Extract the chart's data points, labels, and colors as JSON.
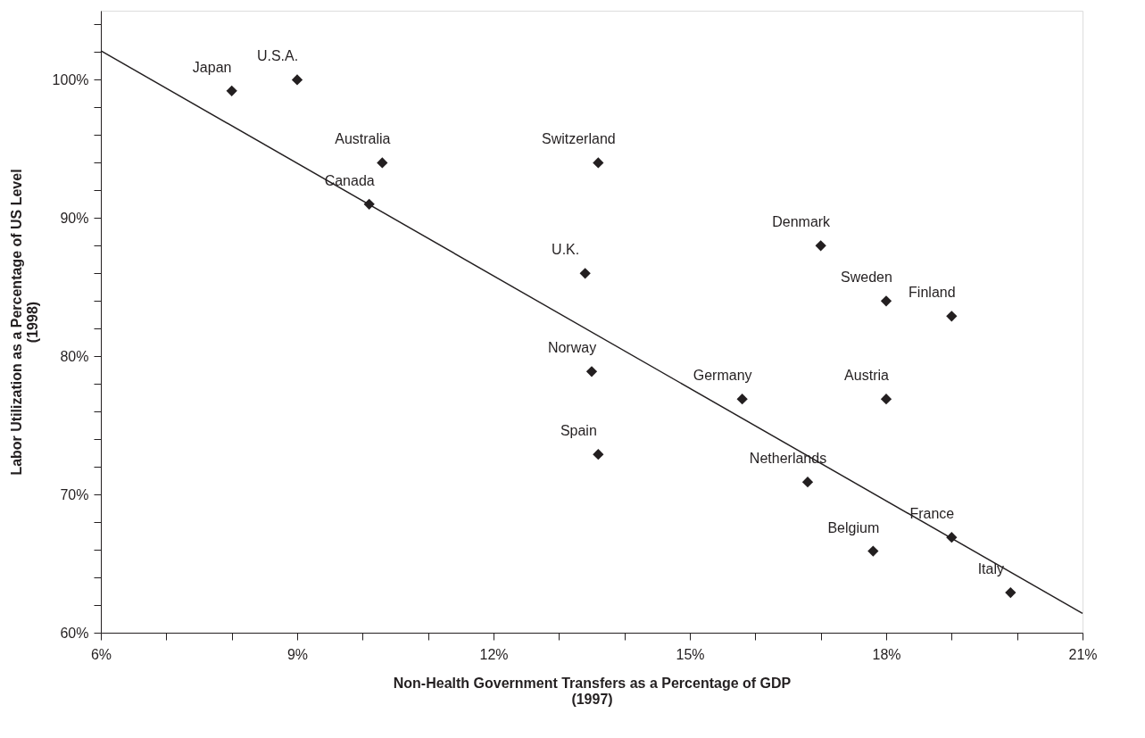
{
  "chart_data": {
    "type": "scatter",
    "xlabel": "Non-Health Government Transfers as a Percentage of GDP\n(1997)",
    "ylabel": "Labor Utilization as a Percentage of US Level\n(1998)",
    "series": [
      {
        "color": "#231f20",
        "marker": "diamond",
        "x": [
          8.0,
          9.0,
          10.3,
          10.1,
          13.6,
          13.4,
          13.5,
          13.6,
          15.8,
          17.0,
          18.0,
          19.0,
          18.0,
          16.8,
          17.8,
          19.0,
          19.9
        ],
        "values": [
          99.2,
          100.0,
          94.0,
          91.0,
          94.0,
          86.0,
          78.9,
          72.9,
          76.9,
          88.0,
          84.0,
          82.9,
          76.9,
          70.9,
          65.9,
          66.9,
          62.9
        ]
      },
      {
        "type": "line",
        "color": "#231f20",
        "line_style": "solid",
        "x": [
          6,
          21
        ],
        "values": [
          102.1,
          61.4
        ]
      }
    ],
    "annotations": [
      {
        "text": "Japan",
        "x": 8.0,
        "y": 99.2
      },
      {
        "text": "U.S.A.",
        "x": 9.0,
        "y": 100.0
      },
      {
        "text": "Australia",
        "x": 10.3,
        "y": 94.0
      },
      {
        "text": "Canada",
        "x": 10.1,
        "y": 91.0
      },
      {
        "text": "Switzerland",
        "x": 13.6,
        "y": 94.0
      },
      {
        "text": "U.K.",
        "x": 13.4,
        "y": 86.0
      },
      {
        "text": "Norway",
        "x": 13.5,
        "y": 78.9
      },
      {
        "text": "Spain",
        "x": 13.6,
        "y": 72.9
      },
      {
        "text": "Germany",
        "x": 15.8,
        "y": 76.9
      },
      {
        "text": "Denmark",
        "x": 17.0,
        "y": 88.0
      },
      {
        "text": "Sweden",
        "x": 18.0,
        "y": 84.0
      },
      {
        "text": "Finland",
        "x": 19.0,
        "y": 82.9
      },
      {
        "text": "Austria",
        "x": 18.0,
        "y": 76.9
      },
      {
        "text": "Netherlands",
        "x": 16.8,
        "y": 70.9
      },
      {
        "text": "Belgium",
        "x": 17.8,
        "y": 65.9
      },
      {
        "text": "France",
        "x": 19.0,
        "y": 66.9
      },
      {
        "text": "Italy",
        "x": 19.9,
        "y": 62.9
      }
    ],
    "xlim": [
      6,
      21
    ],
    "ylim": [
      60,
      105
    ],
    "xticks": [
      {
        "value": 6,
        "label": "6%"
      },
      {
        "value": 7,
        "label": null
      },
      {
        "value": 8,
        "label": null
      },
      {
        "value": 9,
        "label": "9%"
      },
      {
        "value": 10,
        "label": null
      },
      {
        "value": 11,
        "label": null
      },
      {
        "value": 12,
        "label": "12%"
      },
      {
        "value": 13,
        "label": null
      },
      {
        "value": 14,
        "label": null
      },
      {
        "value": 15,
        "label": "15%"
      },
      {
        "value": 16,
        "label": null
      },
      {
        "value": 17,
        "label": null
      },
      {
        "value": 18,
        "label": "18%"
      },
      {
        "value": 19,
        "label": null
      },
      {
        "value": 20,
        "label": null
      },
      {
        "value": 21,
        "label": "21%"
      }
    ],
    "yticks": [
      {
        "value": 60,
        "label": "60%"
      },
      {
        "value": 62,
        "label": null
      },
      {
        "value": 64,
        "label": null
      },
      {
        "value": 66,
        "label": null
      },
      {
        "value": 68,
        "label": null
      },
      {
        "value": 70,
        "label": "70%"
      },
      {
        "value": 72,
        "label": null
      },
      {
        "value": 74,
        "label": null
      },
      {
        "value": 76,
        "label": null
      },
      {
        "value": 78,
        "label": null
      },
      {
        "value": 80,
        "label": "80%"
      },
      {
        "value": 82,
        "label": null
      },
      {
        "value": 84,
        "label": null
      },
      {
        "value": 86,
        "label": null
      },
      {
        "value": 88,
        "label": null
      },
      {
        "value": 90,
        "label": "90%"
      },
      {
        "value": 92,
        "label": null
      },
      {
        "value": 94,
        "label": null
      },
      {
        "value": 96,
        "label": null
      },
      {
        "value": 98,
        "label": null
      },
      {
        "value": 100,
        "label": "100%"
      },
      {
        "value": 102,
        "label": null
      },
      {
        "value": 104,
        "label": null
      }
    ],
    "grid": false
  }
}
